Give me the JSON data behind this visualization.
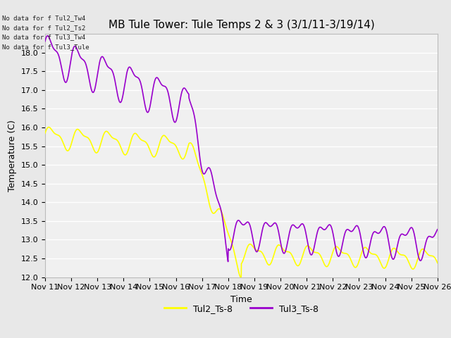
{
  "title": "MB Tule Tower: Tule Temps 2 & 3 (3/1/11-3/19/14)",
  "xlabel": "Time",
  "ylabel": "Temperature (C)",
  "ylim": [
    12.0,
    18.5
  ],
  "y_ticks": [
    12.0,
    12.5,
    13.0,
    13.5,
    14.0,
    14.5,
    15.0,
    15.5,
    16.0,
    16.5,
    17.0,
    17.5,
    18.0
  ],
  "x_tick_labels": [
    "Nov 11",
    "Nov 12",
    "Nov 13",
    "Nov 14",
    "Nov 15",
    "Nov 16",
    "Nov 17",
    "Nov 18",
    "Nov 19",
    "Nov 20",
    "Nov 21",
    "Nov 22",
    "Nov 23",
    "Nov 24",
    "Nov 25",
    "Nov 26"
  ],
  "line1_color": "#ffff00",
  "line2_color": "#9900cc",
  "legend_label1": "Tul2_Ts-8",
  "legend_label2": "Tul3_Ts-8",
  "no_data_labels": [
    "No data for f Tul2_Tw4",
    "No data for f Tul2_Ts2",
    "No data for f Tul3_Tw4",
    "No data for f Tul3_Tule"
  ],
  "bg_color": "#e8e8e8",
  "plot_bg_color": "#f0f0f0",
  "grid_color": "#ffffff",
  "title_fontsize": 11,
  "axis_fontsize": 9,
  "tick_fontsize": 8,
  "legend_fontsize": 9
}
